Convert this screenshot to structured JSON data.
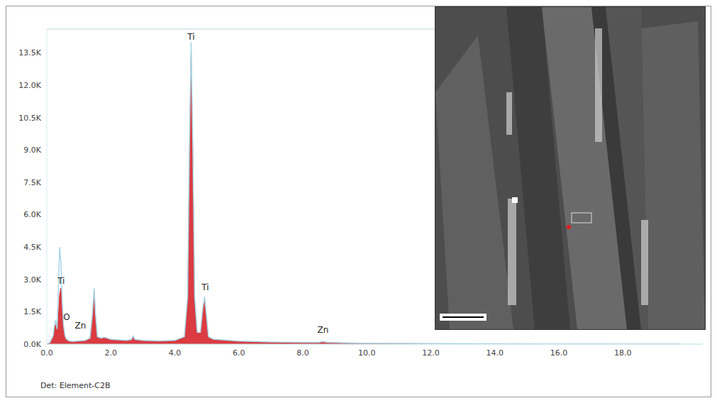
{
  "chart_data": {
    "type": "area",
    "subtitle": "Det: Element-C2B",
    "grid": false,
    "tick_labels": true,
    "x": [
      0,
      0.1,
      0.2,
      0.25,
      0.28,
      0.32,
      0.36,
      0.4,
      0.44,
      0.48,
      0.52,
      0.56,
      0.6,
      0.7,
      0.8,
      1.0,
      1.2,
      1.35,
      1.42,
      1.48,
      1.52,
      1.58,
      1.7,
      1.8,
      2.0,
      2.5,
      2.65,
      2.7,
      2.75,
      3.0,
      3.5,
      4.0,
      4.3,
      4.4,
      4.46,
      4.51,
      4.56,
      4.62,
      4.7,
      4.8,
      4.87,
      4.93,
      4.99,
      5.05,
      5.2,
      6.0,
      7.0,
      8.0,
      8.5,
      8.63,
      8.75,
      9.0,
      10.0,
      12.0,
      14.0,
      16.0,
      18.0,
      19.8
    ],
    "series": [
      {
        "type": "line",
        "color": "#a9d6e6",
        "values": [
          0,
          80,
          400,
          1000,
          1100,
          700,
          2500,
          4500,
          3800,
          2000,
          900,
          450,
          250,
          150,
          120,
          150,
          170,
          280,
          1300,
          2600,
          1400,
          350,
          280,
          320,
          220,
          170,
          220,
          380,
          220,
          170,
          150,
          170,
          350,
          2200,
          9500,
          14000,
          9500,
          2200,
          550,
          550,
          1600,
          2200,
          1300,
          350,
          230,
          140,
          100,
          80,
          80,
          120,
          80,
          70,
          40,
          25,
          15,
          8,
          0,
          0
        ]
      },
      {
        "type": "area",
        "color": "#d7262c",
        "values": [
          0,
          50,
          300,
          800,
          900,
          500,
          1200,
          2300,
          2600,
          1500,
          700,
          350,
          200,
          120,
          100,
          130,
          150,
          250,
          1200,
          2500,
          1300,
          300,
          250,
          300,
          200,
          150,
          200,
          350,
          200,
          150,
          130,
          150,
          300,
          2000,
          9000,
          13600,
          9000,
          2000,
          500,
          500,
          1500,
          2100,
          1200,
          300,
          200,
          120,
          80,
          60,
          60,
          90,
          60,
          50,
          30,
          20,
          10,
          5,
          0,
          0
        ]
      }
    ],
    "xlim": [
      0,
      20.5
    ],
    "xticks": [
      {
        "value": 0,
        "label": "0.0"
      },
      {
        "value": 2,
        "label": "2.0"
      },
      {
        "value": 4,
        "label": "4.0"
      },
      {
        "value": 6,
        "label": "6.0"
      },
      {
        "value": 8,
        "label": "8.0"
      },
      {
        "value": 10,
        "label": "10.0"
      },
      {
        "value": 12,
        "label": "12.0"
      },
      {
        "value": 14,
        "label": "14.0"
      },
      {
        "value": 16,
        "label": "16.0"
      },
      {
        "value": 18,
        "label": "18.0"
      }
    ],
    "ylim": [
      0,
      14600
    ],
    "yticks": [
      {
        "value": 0,
        "label": "0.0K"
      },
      {
        "value": 1500,
        "label": "1.5K"
      },
      {
        "value": 3000,
        "label": "3.0K"
      },
      {
        "value": 4500,
        "label": "4.5K"
      },
      {
        "value": 6000,
        "label": "6.0K"
      },
      {
        "value": 7500,
        "label": "7.5K"
      },
      {
        "value": 9000,
        "label": "9.0K"
      },
      {
        "value": 10500,
        "label": "10.5K"
      },
      {
        "value": 12000,
        "label": "12.0K"
      },
      {
        "value": 13500,
        "label": "13.5K"
      }
    ],
    "annotations": [
      {
        "text": "Ti",
        "x": 0.45,
        "y": 2950
      },
      {
        "text": "O",
        "x": 0.62,
        "y": 1250
      },
      {
        "text": "Zn",
        "x": 1.05,
        "y": 850
      },
      {
        "text": "Ti",
        "x": 4.51,
        "y": 14250
      },
      {
        "text": "Ti",
        "x": 4.95,
        "y": 2650
      },
      {
        "text": "Zn",
        "x": 8.63,
        "y": 650
      }
    ]
  }
}
